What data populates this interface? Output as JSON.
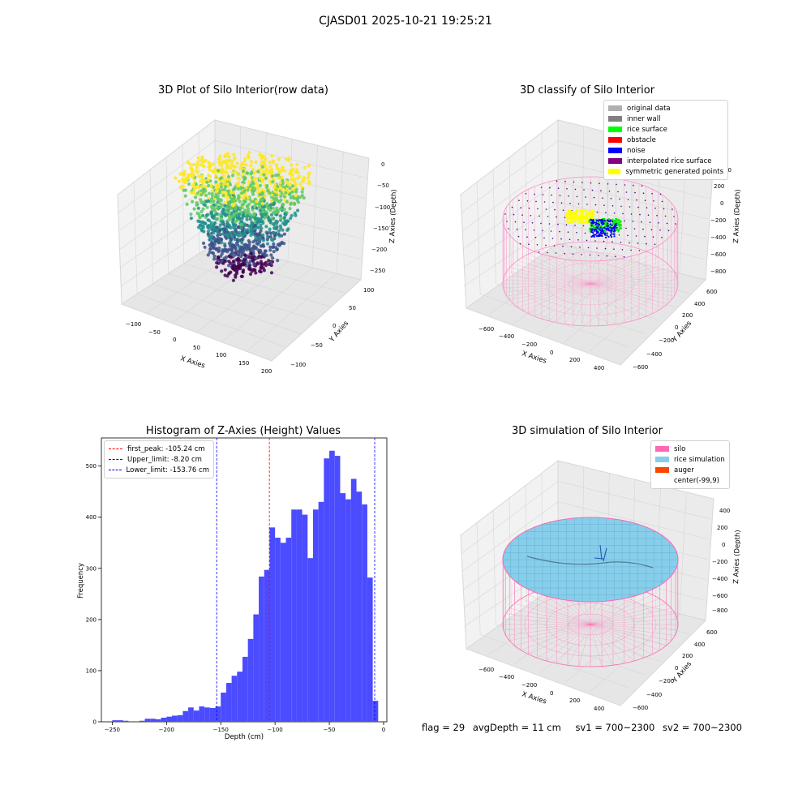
{
  "suptitle": "CJASD01 2025-10-21 19:25:21",
  "panels": {
    "raw": {
      "title": "3D Plot of Silo Interior(row data)",
      "xlabel": "X Axies",
      "ylabel": "Y Axies",
      "zlabel": "Z Axies (Depth)",
      "xticks": [
        "−100",
        "−50",
        "0",
        "50",
        "100",
        "150",
        "200"
      ],
      "yticks": [
        "−100",
        "−50",
        "0",
        "50",
        "100"
      ],
      "zticks": [
        "0",
        "−50",
        "−100",
        "−150",
        "−200",
        "−250"
      ]
    },
    "classify": {
      "title": "3D classify of Silo Interior",
      "xlabel": "X Axies",
      "ylabel": "Y Axies",
      "zlabel": "Z Axies (Depth)",
      "xticks": [
        "−600",
        "−400",
        "−200",
        "0",
        "200",
        "400"
      ],
      "yticks": [
        "−600",
        "−400",
        "−200",
        "0",
        "200",
        "400",
        "600"
      ],
      "zticks": [
        "200",
        "0",
        "−200",
        "−400",
        "−600",
        "−800"
      ],
      "zticks_partial_top": "00",
      "legend": [
        {
          "label": "original data",
          "color": "#b0b0b0"
        },
        {
          "label": "inner wall",
          "color": "#808080"
        },
        {
          "label": "rice surface",
          "color": "#00ff00"
        },
        {
          "label": "obstacle",
          "color": "#ff0000"
        },
        {
          "label": "noise",
          "color": "#0000ff"
        },
        {
          "label": "interpolated rice surface",
          "color": "#800080"
        },
        {
          "label": "symmetric generated points",
          "color": "#ffff00"
        }
      ]
    },
    "simulation": {
      "title": "3D simulation of Silo Interior",
      "xlabel": "X Axies",
      "ylabel": "Y Axies",
      "zlabel": "Z Axies (Depth)",
      "xticks": [
        "−600",
        "−400",
        "−200",
        "0",
        "200",
        "400"
      ],
      "yticks": [
        "−600",
        "−400",
        "−200",
        "0",
        "200",
        "400",
        "600"
      ],
      "zticks": [
        "400",
        "200",
        "0",
        "−200",
        "−400",
        "−600",
        "−800"
      ],
      "legend": [
        {
          "label": "silo",
          "color": "#ff69b4"
        },
        {
          "label": "rice simulation",
          "color": "#87ceeb"
        },
        {
          "label": "auger",
          "color": "#ff4500"
        },
        {
          "label": "center(-99,9)",
          "color": "#ffffff"
        }
      ]
    }
  },
  "footer": {
    "flag": "flag = 29",
    "avg": "avgDepth = 11 cm",
    "sv1": "sv1 = 700~2300",
    "sv2": "sv2 = 700~2300"
  },
  "chart_data": [
    {
      "type": "bar",
      "title": "Histogram of Z-Axies (Height) Values",
      "xlabel": "Depth (cm)",
      "ylabel": "Frequency",
      "xlim": [
        -260,
        3
      ],
      "ylim": [
        0,
        555
      ],
      "xticks": [
        -250,
        -200,
        -150,
        -100,
        -50,
        0
      ],
      "xtick_labels": [
        "−250",
        "−200",
        "−150",
        "−100",
        "−50",
        "0"
      ],
      "yticks": [
        0,
        100,
        200,
        300,
        400,
        500
      ],
      "bar_color": "#4b4bff",
      "bin_start": -250,
      "bin_width": 5,
      "values": [
        3,
        3,
        2,
        0,
        1,
        2,
        6,
        6,
        5,
        8,
        10,
        12,
        13,
        21,
        28,
        22,
        30,
        28,
        27,
        30,
        57,
        76,
        90,
        98,
        127,
        162,
        210,
        284,
        297,
        380,
        360,
        350,
        360,
        415,
        415,
        405,
        320,
        415,
        430,
        515,
        530,
        520,
        447,
        435,
        475,
        450,
        425,
        282,
        41
      ],
      "vlines": [
        {
          "label": "first_peak: -105.24 cm",
          "x": -105.24,
          "color": "#ff0000"
        },
        {
          "label": "Upper_limit: -8.20 cm",
          "x": -8.2,
          "color": "#0000ff"
        },
        {
          "label": "Lower_limit: -153.76 cm",
          "x": -153.76,
          "color": "#0000ff"
        }
      ]
    }
  ]
}
